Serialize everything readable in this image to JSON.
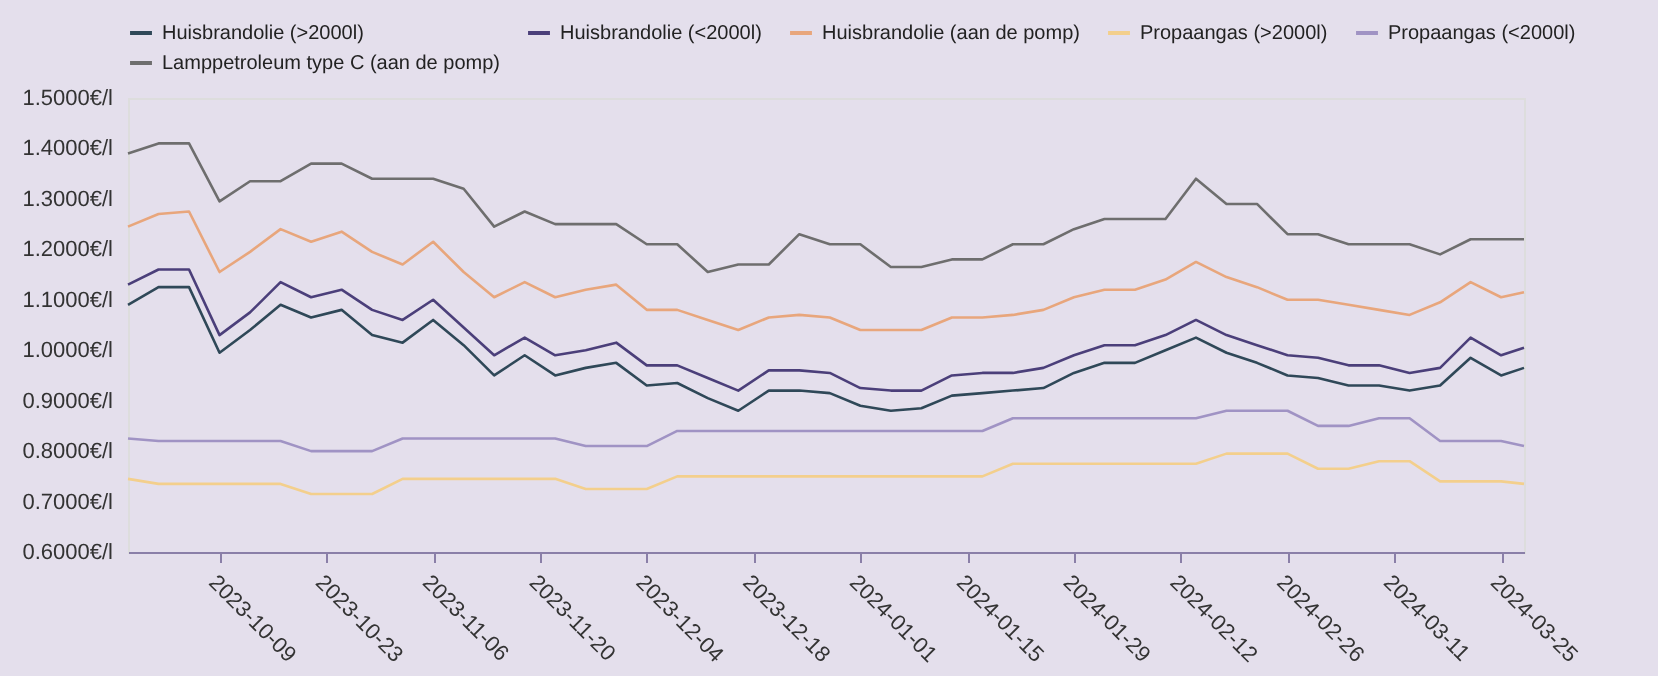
{
  "chart_data": {
    "type": "line",
    "legend": "top",
    "grid": false,
    "marker": "none",
    "line_style": "solid",
    "x": [
      "2023-09-27",
      "2023-10-01",
      "2023-10-05",
      "2023-10-09",
      "2023-10-13",
      "2023-10-17",
      "2023-10-21",
      "2023-10-25",
      "2023-10-29",
      "2023-11-02",
      "2023-11-06",
      "2023-11-10",
      "2023-11-14",
      "2023-11-18",
      "2023-11-22",
      "2023-11-26",
      "2023-11-30",
      "2023-12-04",
      "2023-12-08",
      "2023-12-12",
      "2023-12-16",
      "2023-12-20",
      "2023-12-24",
      "2023-12-28",
      "2024-01-01",
      "2024-01-05",
      "2024-01-09",
      "2024-01-13",
      "2024-01-17",
      "2024-01-21",
      "2024-01-25",
      "2024-01-29",
      "2024-02-02",
      "2024-02-06",
      "2024-02-10",
      "2024-02-14",
      "2024-02-18",
      "2024-02-22",
      "2024-02-26",
      "2024-03-01",
      "2024-03-05",
      "2024-03-09",
      "2024-03-13",
      "2024-03-17",
      "2024-03-21",
      "2024-03-25",
      "2024-03-28"
    ],
    "series": [
      {
        "name": "Huisbrandolie (>2000l)",
        "color": "#2f4858",
        "values": [
          1.09,
          1.125,
          1.125,
          0.995,
          1.04,
          1.09,
          1.065,
          1.08,
          1.03,
          1.015,
          1.06,
          1.01,
          0.95,
          0.99,
          0.95,
          0.965,
          0.975,
          0.93,
          0.935,
          0.905,
          0.88,
          0.92,
          0.92,
          0.915,
          0.89,
          0.88,
          0.885,
          0.91,
          0.915,
          0.92,
          0.925,
          0.955,
          0.975,
          0.975,
          1.0,
          1.025,
          0.995,
          0.975,
          0.95,
          0.945,
          0.93,
          0.93,
          0.92,
          0.93,
          0.985,
          0.95,
          0.965
        ]
      },
      {
        "name": "Huisbrandolie (<2000l)",
        "color": "#4b3f7a",
        "values": [
          1.13,
          1.16,
          1.16,
          1.03,
          1.075,
          1.135,
          1.105,
          1.12,
          1.08,
          1.06,
          1.1,
          1.045,
          0.99,
          1.025,
          0.99,
          1.0,
          1.015,
          0.97,
          0.97,
          0.945,
          0.92,
          0.96,
          0.96,
          0.955,
          0.925,
          0.92,
          0.92,
          0.95,
          0.955,
          0.955,
          0.965,
          0.99,
          1.01,
          1.01,
          1.03,
          1.06,
          1.03,
          1.01,
          0.99,
          0.985,
          0.97,
          0.97,
          0.955,
          0.965,
          1.025,
          0.99,
          1.005
        ]
      },
      {
        "name": "Huisbrandolie (aan de pomp)",
        "color": "#e8a67c",
        "values": [
          1.245,
          1.27,
          1.275,
          1.155,
          1.195,
          1.24,
          1.215,
          1.235,
          1.195,
          1.17,
          1.215,
          1.155,
          1.105,
          1.135,
          1.105,
          1.12,
          1.13,
          1.08,
          1.08,
          1.06,
          1.04,
          1.065,
          1.07,
          1.065,
          1.04,
          1.04,
          1.04,
          1.065,
          1.065,
          1.07,
          1.08,
          1.105,
          1.12,
          1.12,
          1.14,
          1.175,
          1.145,
          1.125,
          1.1,
          1.1,
          1.09,
          1.08,
          1.07,
          1.095,
          1.135,
          1.105,
          1.115
        ]
      },
      {
        "name": "Propaangas (>2000l)",
        "color": "#f3cf8c",
        "values": [
          0.745,
          0.735,
          0.735,
          0.735,
          0.735,
          0.735,
          0.715,
          0.715,
          0.715,
          0.745,
          0.745,
          0.745,
          0.745,
          0.745,
          0.745,
          0.725,
          0.725,
          0.725,
          0.75,
          0.75,
          0.75,
          0.75,
          0.75,
          0.75,
          0.75,
          0.75,
          0.75,
          0.75,
          0.75,
          0.775,
          0.775,
          0.775,
          0.775,
          0.775,
          0.775,
          0.775,
          0.795,
          0.795,
          0.795,
          0.765,
          0.765,
          0.78,
          0.78,
          0.74,
          0.74,
          0.74,
          0.735
        ]
      },
      {
        "name": "Propaangas (<2000l)",
        "color": "#a093c4",
        "values": [
          0.825,
          0.82,
          0.82,
          0.82,
          0.82,
          0.82,
          0.8,
          0.8,
          0.8,
          0.825,
          0.825,
          0.825,
          0.825,
          0.825,
          0.825,
          0.81,
          0.81,
          0.81,
          0.84,
          0.84,
          0.84,
          0.84,
          0.84,
          0.84,
          0.84,
          0.84,
          0.84,
          0.84,
          0.84,
          0.865,
          0.865,
          0.865,
          0.865,
          0.865,
          0.865,
          0.865,
          0.88,
          0.88,
          0.88,
          0.85,
          0.85,
          0.865,
          0.865,
          0.82,
          0.82,
          0.82,
          0.81
        ]
      },
      {
        "name": "Lamppetroleum type C (aan de pomp)",
        "color": "#6e6e6e",
        "values": [
          1.39,
          1.41,
          1.41,
          1.295,
          1.335,
          1.335,
          1.37,
          1.37,
          1.34,
          1.34,
          1.34,
          1.32,
          1.245,
          1.275,
          1.25,
          1.25,
          1.25,
          1.21,
          1.21,
          1.155,
          1.17,
          1.17,
          1.23,
          1.21,
          1.21,
          1.165,
          1.165,
          1.18,
          1.18,
          1.21,
          1.21,
          1.24,
          1.26,
          1.26,
          1.26,
          1.34,
          1.29,
          1.29,
          1.23,
          1.23,
          1.21,
          1.21,
          1.21,
          1.19,
          1.22,
          1.22,
          1.22
        ]
      }
    ],
    "xlim": [
      "2023-09-27",
      "2024-03-28"
    ],
    "xticks": [
      "2023-10-09",
      "2023-10-23",
      "2023-11-06",
      "2023-11-20",
      "2023-12-04",
      "2023-12-18",
      "2024-01-01",
      "2024-01-15",
      "2024-01-29",
      "2024-02-12",
      "2024-02-26",
      "2024-03-11",
      "2024-03-25"
    ],
    "ylim": [
      0.6,
      1.5
    ],
    "yticks": [
      {
        "value": 0.6,
        "label": "0.6000€/l"
      },
      {
        "value": 0.7,
        "label": "0.7000€/l"
      },
      {
        "value": 0.8,
        "label": "0.8000€/l"
      },
      {
        "value": 0.9,
        "label": "0.9000€/l"
      },
      {
        "value": 1.0,
        "label": "1.0000€/l"
      },
      {
        "value": 1.1,
        "label": "1.1000€/l"
      },
      {
        "value": 1.2,
        "label": "1.2000€/l"
      },
      {
        "value": 1.3,
        "label": "1.3000€/l"
      },
      {
        "value": 1.4,
        "label": "1.4000€/l"
      },
      {
        "value": 1.5,
        "label": "1.5000€/l"
      }
    ]
  }
}
